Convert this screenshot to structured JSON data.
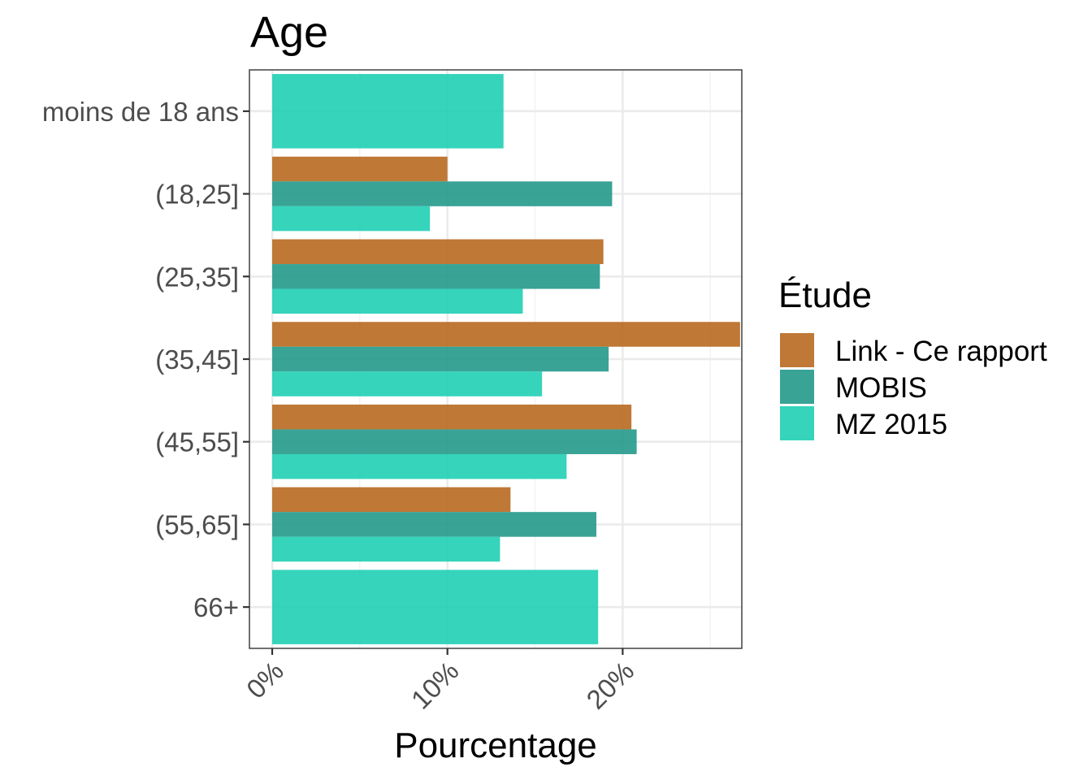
{
  "chart_data": {
    "type": "bar",
    "orientation": "horizontal",
    "title": "Age",
    "xlabel": "Pourcentage",
    "ylabel": "",
    "categories": [
      "moins de 18 ans",
      "(18,25]",
      "(25,35]",
      "(35,45]",
      "(45,55]",
      "(55,65]",
      "66+"
    ],
    "x_ticks": [
      0,
      10,
      20
    ],
    "x_tick_labels": [
      "0%",
      "10%",
      "20%"
    ],
    "xlim": [
      -1.3,
      26.8
    ],
    "grid": true,
    "legend": {
      "title": "Étude",
      "position": "right"
    },
    "series": [
      {
        "name": "Link - Ce rapport",
        "color": "#b8691f",
        "values": [
          null,
          10.0,
          18.9,
          26.7,
          20.5,
          13.6,
          null
        ]
      },
      {
        "name": "MOBIS",
        "color": "#24998b",
        "values": [
          null,
          19.4,
          18.7,
          19.2,
          20.8,
          18.5,
          null
        ]
      },
      {
        "name": "MZ 2015",
        "color": "#1fcfb4",
        "values": [
          13.2,
          9.0,
          14.3,
          15.4,
          16.8,
          13.0,
          18.6
        ]
      }
    ]
  }
}
